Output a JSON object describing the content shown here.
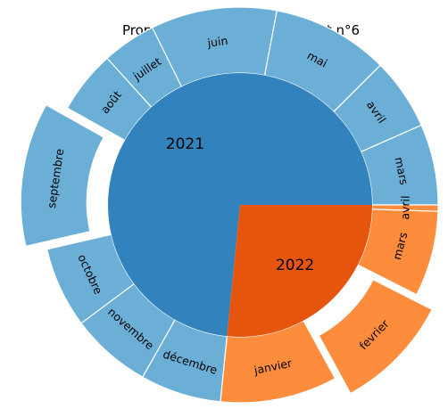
{
  "chart_data": {
    "type": "pie",
    "subtype": "nested-donut",
    "title": "Propreté dans l'arrondissement n°6",
    "start_angle_deg": 0,
    "direction": "counterclockwise",
    "inner": [
      {
        "label": "2021",
        "value": 10,
        "color": "#3182bd"
      },
      {
        "label": "2022",
        "value": 3.62,
        "color": "#e6550d"
      }
    ],
    "outer": [
      {
        "label": "mars",
        "year": "2021",
        "value": 0.9,
        "explode": false,
        "color": "#6baed6"
      },
      {
        "label": "avril",
        "year": "2021",
        "value": 0.8,
        "explode": false,
        "color": "#6baed6"
      },
      {
        "label": "mai",
        "year": "2021",
        "value": 1.3,
        "explode": false,
        "color": "#6baed6"
      },
      {
        "label": "juin",
        "year": "2021",
        "value": 1.4,
        "explode": false,
        "color": "#6baed6"
      },
      {
        "label": "juillet",
        "year": "2021",
        "value": 0.6,
        "explode": false,
        "color": "#6baed6"
      },
      {
        "label": "août",
        "year": "2021",
        "value": 0.7,
        "explode": false,
        "color": "#6baed6"
      },
      {
        "label": "septembre",
        "year": "2021",
        "value": 1.6,
        "explode": true,
        "color": "#6baed6"
      },
      {
        "label": "octobre",
        "year": "2021",
        "value": 0.9,
        "explode": false,
        "color": "#6baed6"
      },
      {
        "label": "novembre",
        "year": "2021",
        "value": 0.9,
        "explode": false,
        "color": "#6baed6"
      },
      {
        "label": "décembre",
        "year": "2021",
        "value": 0.9,
        "explode": false,
        "color": "#6baed6"
      },
      {
        "label": "janvier",
        "year": "2022",
        "value": 1.3,
        "explode": false,
        "color": "#fd8d3c"
      },
      {
        "label": "fevrier",
        "year": "2022",
        "value": 1.3,
        "explode": true,
        "color": "#fd8d3c"
      },
      {
        "label": "mars",
        "year": "2022",
        "value": 0.95,
        "explode": false,
        "color": "#fd8d3c"
      },
      {
        "label": "avril",
        "year": "2022",
        "value": 0.07,
        "explode": false,
        "color": "#fd8d3c"
      }
    ]
  }
}
